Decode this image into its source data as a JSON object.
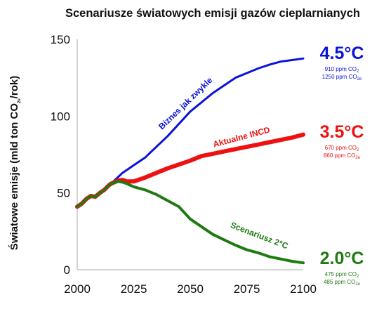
{
  "chart_data": {
    "type": "line",
    "title": "Scenariusze światowych emisji gazów cieplarnianych",
    "ylabel": "Światowe emisje (mld ton CO2e/rok)",
    "ylabel_parts": {
      "before": "Światowe emisje (mld ton CO",
      "sub": "2e",
      "after": "/rok)"
    },
    "xlabel": "",
    "xlim": [
      2000,
      2100
    ],
    "ylim": [
      0,
      150
    ],
    "xticks": [
      "2000",
      "2025",
      "2050",
      "2075",
      "2100"
    ],
    "yticks": [
      "0",
      "50",
      "100",
      "150"
    ],
    "grid": false,
    "colors": {
      "blue": "#0a14d8",
      "red": "#ee1111",
      "green": "#1f7a12",
      "axis": "#aaaaaa"
    },
    "series": [
      {
        "name": "Biznes jak zwykle",
        "color": "#0a14d8",
        "x": [
          2015,
          2020,
          2025,
          2030,
          2035,
          2040,
          2045,
          2050,
          2055,
          2060,
          2065,
          2070,
          2075,
          2080,
          2085,
          2090,
          2095,
          2100
        ],
        "y": [
          56,
          63,
          68,
          73,
          80,
          87,
          95,
          103,
          109,
          115,
          120,
          125,
          128,
          131,
          133.5,
          135.5,
          136.5,
          137.5
        ],
        "end_label": "4.5°C",
        "notes": [
          {
            "pre": "910 ppm CO",
            "sub": "2",
            "post": ""
          },
          {
            "pre": "1250 ppm CO",
            "sub": "2e",
            "post": ""
          }
        ]
      },
      {
        "name": "Aktualne INCD",
        "color": "#ee1111",
        "x": [
          2015,
          2018,
          2020,
          2022,
          2025,
          2030,
          2035,
          2040,
          2045,
          2050,
          2055,
          2060,
          2065,
          2070,
          2075,
          2080,
          2085,
          2090,
          2095,
          2100
        ],
        "y": [
          56,
          58,
          58.5,
          57.5,
          57.5,
          60,
          63,
          66,
          68.5,
          71,
          74,
          75.5,
          77,
          78.5,
          80,
          81.5,
          83,
          84.5,
          86,
          88
        ],
        "end_label": "3.5°C",
        "notes": [
          {
            "pre": "670 ppm CO",
            "sub": "2",
            "post": ""
          },
          {
            "pre": "860 ppm CO",
            "sub": "2e",
            "post": ""
          }
        ]
      },
      {
        "name": "Scenariusz 2°C",
        "color": "#1f7a12",
        "x": [
          2015,
          2018,
          2020,
          2022,
          2025,
          2030,
          2035,
          2040,
          2045,
          2050,
          2055,
          2060,
          2065,
          2070,
          2075,
          2080,
          2085,
          2090,
          2095,
          2100
        ],
        "y": [
          56,
          57.5,
          57,
          56,
          54,
          52,
          49,
          45,
          41,
          33,
          28,
          23,
          19.5,
          16,
          13,
          11,
          8.5,
          7,
          5.5,
          4.5
        ],
        "end_label": "2.0°C",
        "notes": [
          {
            "pre": "475 ppm CO",
            "sub": "2",
            "post": ""
          },
          {
            "pre": "485 ppm CO",
            "sub": "2e",
            "post": ""
          }
        ]
      }
    ],
    "history": {
      "color_under": "#ee1111",
      "color_over": "#1f7a12",
      "x": [
        2000,
        2002,
        2004,
        2006,
        2008,
        2010,
        2012,
        2014,
        2015
      ],
      "y": [
        41,
        43,
        46,
        48,
        47.5,
        50,
        52,
        55,
        56
      ]
    }
  }
}
